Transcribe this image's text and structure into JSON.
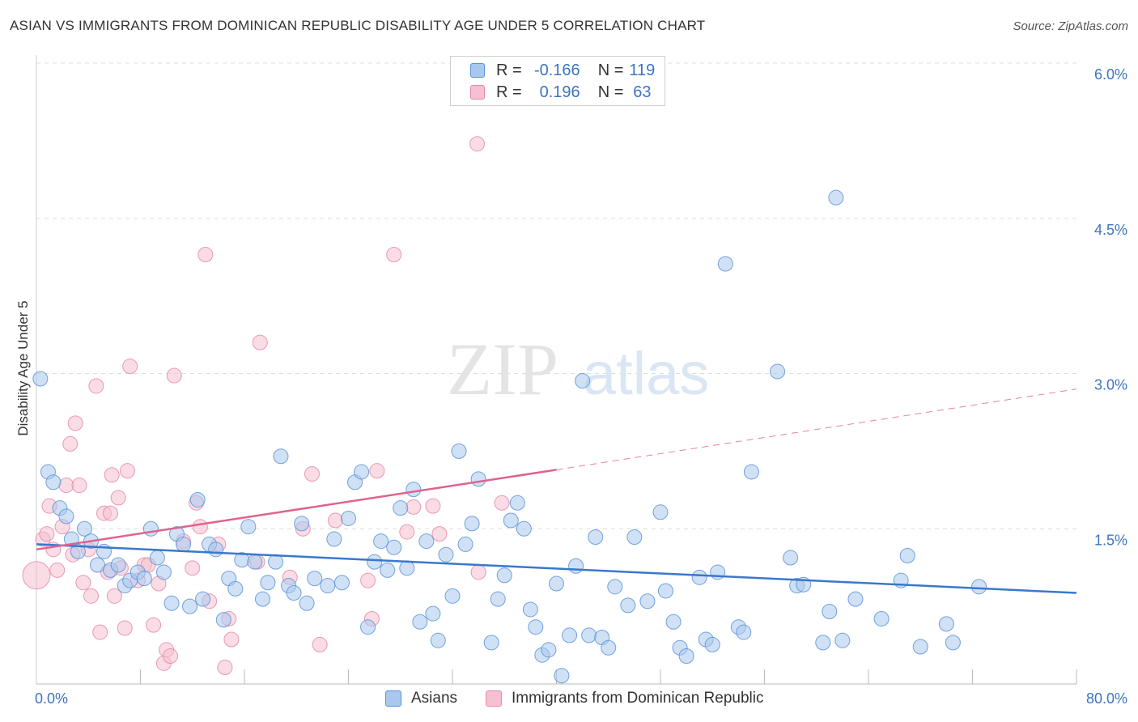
{
  "title": "ASIAN VS IMMIGRANTS FROM DOMINICAN REPUBLIC DISABILITY AGE UNDER 5 CORRELATION CHART",
  "source": "Source: ZipAtlas.com",
  "watermark": "ZIPatlas",
  "legend_stats": [
    {
      "r_label": "R =",
      "r_value": "-0.166",
      "n_label": "N =",
      "n_value": "119"
    },
    {
      "r_label": "R =",
      "r_value": "0.196",
      "n_label": "N =",
      "n_value": "63"
    }
  ],
  "colors": {
    "asian_fill": "#a9c8ef",
    "asian_stroke": "#5a93d6",
    "asian_line": "#3a78cc",
    "dom_fill": "#f6c0d0",
    "dom_stroke": "#e58aa8",
    "dom_line": "#e0628e",
    "axis_label": "#3c74c4",
    "grid": "#dddddd"
  },
  "chart_data": {
    "type": "scatter",
    "ylabel": "Disability Age Under 5",
    "xlim": [
      0,
      80
    ],
    "ylim": [
      0,
      6.0
    ],
    "x_tick_labels": [
      "0.0%",
      "80.0%"
    ],
    "y_ticks": [
      1.5,
      3.0,
      4.5,
      6.0
    ],
    "y_tick_labels": [
      "1.5%",
      "3.0%",
      "4.5%",
      "6.0%"
    ],
    "grid": true,
    "legend_position": "top-center",
    "series": [
      {
        "name": "Asians",
        "trend": [
          [
            0,
            1.35
          ],
          [
            80,
            0.88
          ]
        ],
        "points": [
          [
            0.3,
            2.95,
            1
          ],
          [
            0.9,
            2.05,
            1
          ],
          [
            1.3,
            1.95,
            1
          ],
          [
            1.8,
            1.7,
            1
          ],
          [
            2.3,
            1.62,
            1
          ],
          [
            2.7,
            1.4,
            1
          ],
          [
            3.2,
            1.28,
            1
          ],
          [
            3.7,
            1.5,
            1
          ],
          [
            4.2,
            1.38,
            1
          ],
          [
            4.7,
            1.15,
            1
          ],
          [
            5.2,
            1.28,
            1
          ],
          [
            5.7,
            1.1,
            1
          ],
          [
            6.3,
            1.15,
            1
          ],
          [
            6.8,
            0.95,
            1
          ],
          [
            7.2,
            1.0,
            1
          ],
          [
            7.8,
            1.08,
            1
          ],
          [
            8.3,
            1.02,
            1
          ],
          [
            8.8,
            1.5,
            1
          ],
          [
            9.3,
            1.22,
            1
          ],
          [
            9.8,
            1.08,
            1
          ],
          [
            10.4,
            0.78,
            1
          ],
          [
            10.8,
            1.45,
            1
          ],
          [
            11.3,
            1.35,
            1
          ],
          [
            11.8,
            0.75,
            1
          ],
          [
            12.4,
            1.78,
            1
          ],
          [
            12.8,
            0.82,
            1
          ],
          [
            13.3,
            1.35,
            1
          ],
          [
            13.8,
            1.3,
            1
          ],
          [
            14.4,
            0.62,
            1
          ],
          [
            14.8,
            1.02,
            1
          ],
          [
            15.3,
            0.92,
            1
          ],
          [
            15.8,
            1.2,
            1
          ],
          [
            16.3,
            1.52,
            1
          ],
          [
            16.8,
            1.18,
            1
          ],
          [
            17.4,
            0.82,
            1
          ],
          [
            17.8,
            0.98,
            1
          ],
          [
            18.4,
            1.18,
            1
          ],
          [
            18.8,
            2.2,
            1
          ],
          [
            19.4,
            0.95,
            1
          ],
          [
            19.8,
            0.88,
            1
          ],
          [
            20.4,
            1.55,
            1
          ],
          [
            20.8,
            0.78,
            1
          ],
          [
            21.4,
            1.02,
            1
          ],
          [
            22.4,
            0.95,
            1
          ],
          [
            22.9,
            1.4,
            1
          ],
          [
            23.5,
            0.98,
            1
          ],
          [
            24.0,
            1.6,
            1
          ],
          [
            24.5,
            1.95,
            1
          ],
          [
            25.0,
            2.05,
            1
          ],
          [
            25.5,
            0.55,
            1
          ],
          [
            26.0,
            1.18,
            1
          ],
          [
            26.5,
            1.38,
            1
          ],
          [
            27.0,
            1.1,
            1
          ],
          [
            27.5,
            1.32,
            1
          ],
          [
            28.0,
            1.7,
            1
          ],
          [
            28.5,
            1.12,
            1
          ],
          [
            29.0,
            1.88,
            1
          ],
          [
            29.5,
            0.6,
            1
          ],
          [
            30.0,
            1.38,
            1
          ],
          [
            30.5,
            0.68,
            1
          ],
          [
            30.9,
            0.42,
            1
          ],
          [
            31.5,
            1.25,
            1
          ],
          [
            32.0,
            0.85,
            1
          ],
          [
            32.5,
            2.25,
            1
          ],
          [
            33.0,
            1.35,
            1
          ],
          [
            33.5,
            1.55,
            1
          ],
          [
            34.0,
            1.98,
            1
          ],
          [
            35.0,
            0.4,
            1
          ],
          [
            35.5,
            0.82,
            1
          ],
          [
            36.0,
            1.05,
            1
          ],
          [
            36.5,
            1.58,
            1
          ],
          [
            37.0,
            1.75,
            1
          ],
          [
            37.5,
            1.5,
            1
          ],
          [
            38.0,
            0.72,
            1
          ],
          [
            38.4,
            0.55,
            1
          ],
          [
            38.9,
            0.28,
            1
          ],
          [
            39.4,
            0.33,
            1
          ],
          [
            40.0,
            0.97,
            1
          ],
          [
            40.4,
            0.08,
            1
          ],
          [
            41.0,
            0.47,
            1
          ],
          [
            41.5,
            1.14,
            1
          ],
          [
            42.0,
            2.93,
            1
          ],
          [
            42.5,
            0.47,
            1
          ],
          [
            43.0,
            1.42,
            1
          ],
          [
            43.5,
            0.45,
            1
          ],
          [
            44.0,
            0.35,
            1
          ],
          [
            44.5,
            0.94,
            1
          ],
          [
            45.5,
            0.76,
            1
          ],
          [
            46.0,
            1.42,
            1
          ],
          [
            47.0,
            0.8,
            1
          ],
          [
            48.0,
            1.66,
            1
          ],
          [
            48.4,
            0.9,
            1
          ],
          [
            49.0,
            0.6,
            1
          ],
          [
            49.5,
            0.35,
            1
          ],
          [
            50.0,
            0.27,
            1
          ],
          [
            51.0,
            1.03,
            1
          ],
          [
            51.5,
            0.43,
            1
          ],
          [
            52.0,
            0.38,
            1
          ],
          [
            52.4,
            1.08,
            1
          ],
          [
            53.0,
            4.06,
            1
          ],
          [
            54.0,
            0.55,
            1
          ],
          [
            54.4,
            0.5,
            1
          ],
          [
            55.0,
            2.05,
            1
          ],
          [
            57.0,
            3.02,
            1
          ],
          [
            58.0,
            1.22,
            1
          ],
          [
            58.5,
            0.95,
            1
          ],
          [
            59.0,
            0.96,
            1
          ],
          [
            60.5,
            0.4,
            1
          ],
          [
            61.0,
            0.7,
            1
          ],
          [
            61.5,
            4.7,
            1
          ],
          [
            62.0,
            0.42,
            1
          ],
          [
            63.0,
            0.82,
            1
          ],
          [
            65.0,
            0.63,
            1
          ],
          [
            66.5,
            1.0,
            1
          ],
          [
            67.0,
            1.24,
            1
          ],
          [
            68.0,
            0.36,
            1
          ],
          [
            70.0,
            0.58,
            1
          ],
          [
            70.5,
            0.4,
            1
          ],
          [
            72.5,
            0.94,
            1
          ]
        ]
      },
      {
        "name": "Immigrants from Dominican Republic",
        "trend": [
          [
            0,
            1.3
          ],
          [
            40,
            2.07
          ]
        ],
        "trend_ext": [
          [
            40,
            2.07
          ],
          [
            80,
            2.85
          ]
        ],
        "points": [
          [
            0.0,
            1.05,
            2
          ],
          [
            0.5,
            1.4,
            1
          ],
          [
            0.8,
            1.45,
            1
          ],
          [
            1.0,
            1.72,
            1
          ],
          [
            1.3,
            1.3,
            1
          ],
          [
            1.6,
            1.1,
            1
          ],
          [
            2.0,
            1.52,
            1
          ],
          [
            2.3,
            1.92,
            1
          ],
          [
            2.6,
            2.32,
            1
          ],
          [
            2.8,
            1.25,
            1
          ],
          [
            3.0,
            2.52,
            1
          ],
          [
            3.3,
            1.92,
            1
          ],
          [
            3.6,
            0.98,
            1
          ],
          [
            4.0,
            1.3,
            1
          ],
          [
            4.2,
            0.85,
            1
          ],
          [
            4.6,
            2.88,
            1
          ],
          [
            4.9,
            0.5,
            1
          ],
          [
            5.2,
            1.65,
            1
          ],
          [
            5.5,
            1.08,
            1
          ],
          [
            5.7,
            1.65,
            1
          ],
          [
            5.8,
            2.02,
            1
          ],
          [
            6.0,
            0.85,
            1
          ],
          [
            6.3,
            1.8,
            1
          ],
          [
            6.5,
            1.12,
            1
          ],
          [
            6.8,
            0.54,
            1
          ],
          [
            7.0,
            2.06,
            1
          ],
          [
            7.2,
            3.07,
            1
          ],
          [
            7.8,
            1.0,
            1
          ],
          [
            8.3,
            1.15,
            1
          ],
          [
            8.6,
            1.15,
            1
          ],
          [
            9.0,
            0.57,
            1
          ],
          [
            9.4,
            0.97,
            1
          ],
          [
            9.8,
            0.2,
            1
          ],
          [
            10.0,
            0.33,
            1
          ],
          [
            10.3,
            0.27,
            1
          ],
          [
            10.6,
            2.98,
            1
          ],
          [
            11.3,
            1.38,
            1
          ],
          [
            12.0,
            1.12,
            1
          ],
          [
            12.3,
            1.75,
            1
          ],
          [
            12.6,
            1.52,
            1
          ],
          [
            13.0,
            4.15,
            1
          ],
          [
            13.3,
            0.8,
            1
          ],
          [
            14.0,
            1.35,
            1
          ],
          [
            14.5,
            0.16,
            1
          ],
          [
            14.8,
            0.63,
            1
          ],
          [
            15.0,
            0.43,
            1
          ],
          [
            17.0,
            1.18,
            1
          ],
          [
            17.2,
            3.3,
            1
          ],
          [
            19.5,
            1.03,
            1
          ],
          [
            20.5,
            1.5,
            1
          ],
          [
            21.2,
            2.03,
            1
          ],
          [
            21.8,
            0.38,
            1
          ],
          [
            23.0,
            1.58,
            1
          ],
          [
            25.5,
            1.0,
            1
          ],
          [
            25.8,
            0.63,
            1
          ],
          [
            26.2,
            2.06,
            1
          ],
          [
            27.5,
            4.15,
            1
          ],
          [
            28.5,
            1.47,
            1
          ],
          [
            29.0,
            1.71,
            1
          ],
          [
            30.5,
            1.72,
            1
          ],
          [
            31.0,
            1.45,
            1
          ],
          [
            33.9,
            5.22,
            1
          ],
          [
            34.0,
            1.08,
            1
          ],
          [
            35.8,
            1.75,
            1
          ]
        ]
      }
    ]
  },
  "bottom_legend": [
    {
      "label": "Asians"
    },
    {
      "label": "Immigrants from Dominican Republic"
    }
  ]
}
